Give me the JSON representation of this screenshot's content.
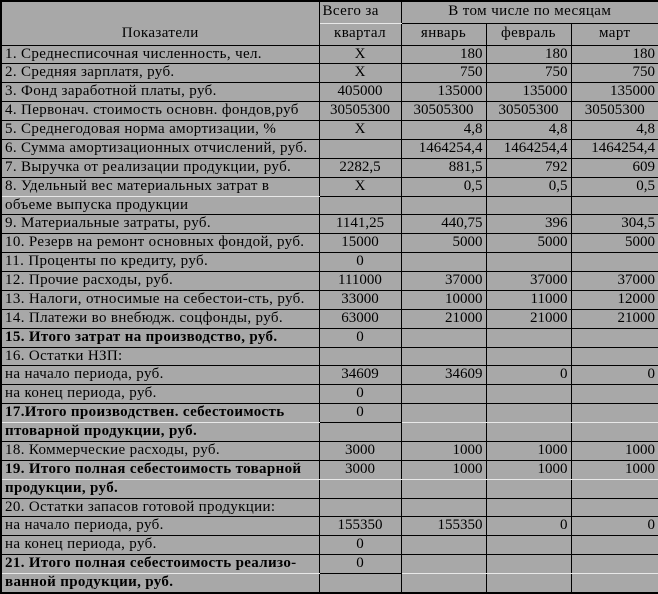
{
  "table": {
    "colors": {
      "background": "#a8a8a8",
      "grid": "#000000",
      "separator_highlight": "#e8e8e8"
    },
    "header": {
      "indicators": "Показатели",
      "total_line1": "Всего за",
      "total_line2": "квартал",
      "months_group": "В том числе по месяцам",
      "months": [
        "январь",
        "февраль",
        "март"
      ]
    },
    "rows": [
      {
        "lines": [
          "1. Среднесписочная численность, чел."
        ],
        "bold": false,
        "total": "Х",
        "months": [
          "180",
          "180",
          "180"
        ]
      },
      {
        "lines": [
          "2. Средняя зарплатя, руб."
        ],
        "bold": false,
        "total": "Х",
        "months": [
          "750",
          "750",
          "750"
        ]
      },
      {
        "lines": [
          "3. Фонд заработной платы, руб."
        ],
        "bold": false,
        "total": "405000",
        "months": [
          "135000",
          "135000",
          "135000"
        ]
      },
      {
        "lines": [
          "4. Первонач. стоимость основн. фондов,руб"
        ],
        "bold": false,
        "total": "30505300",
        "months": [
          "30505300",
          "30505300",
          "30505300"
        ],
        "months_align": "center"
      },
      {
        "lines": [
          "5. Среднегодовая норма амортизации, %"
        ],
        "bold": false,
        "total": "Х",
        "months": [
          "4,8",
          "4,8",
          "4,8"
        ]
      },
      {
        "lines": [
          "6. Сумма амортизационных отчислений, руб."
        ],
        "bold": false,
        "total": "",
        "months": [
          "1464254,4",
          "1464254,4",
          "1464254,4"
        ]
      },
      {
        "lines": [
          "7. Выручка от реализации продукции, руб."
        ],
        "bold": false,
        "total": "2282,5",
        "months": [
          "881,5",
          "792",
          "609"
        ]
      },
      {
        "lines": [
          "8. Удельный вес материальных затрат в",
          "объеме выпуска продукции"
        ],
        "bold": false,
        "total": "Х",
        "months": [
          "0,5",
          "0,5",
          "0,5"
        ],
        "seps": {
          "label": "w"
        }
      },
      {
        "lines": [
          "9. Материальные затраты, руб."
        ],
        "bold": false,
        "total": "1141,25",
        "months": [
          "440,75",
          "396",
          "304,5"
        ]
      },
      {
        "lines": [
          "10. Резерв на ремонт основных фондой, руб."
        ],
        "bold": false,
        "total": "15000",
        "months": [
          "5000",
          "5000",
          "5000"
        ]
      },
      {
        "lines": [
          "11. Проценты по кредиту, руб."
        ],
        "bold": false,
        "total": "0",
        "months": [
          "",
          "",
          ""
        ]
      },
      {
        "lines": [
          "12. Прочие расходы, руб."
        ],
        "bold": false,
        "total": "111000",
        "months": [
          "37000",
          "37000",
          "37000"
        ]
      },
      {
        "lines": [
          "13. Налоги, относимые на себестои-сть, руб."
        ],
        "bold": false,
        "total": "33000",
        "months": [
          "10000",
          "11000",
          "12000"
        ]
      },
      {
        "lines": [
          "14. Платежи во внебюдж. соцфонды, руб."
        ],
        "bold": false,
        "total": "63000",
        "months": [
          "21000",
          "21000",
          "21000"
        ]
      },
      {
        "lines": [
          "15. Итого затрат на производство, руб."
        ],
        "bold": true,
        "total": "0",
        "months": [
          "",
          "",
          ""
        ]
      },
      {
        "lines": [
          "16. Остатки НЗП:"
        ],
        "bold": false,
        "total": "",
        "months": [
          "",
          "",
          ""
        ]
      },
      {
        "lines": [
          "на начало периода, руб."
        ],
        "bold": false,
        "total": "34609",
        "months": [
          "34609",
          "0",
          "0"
        ]
      },
      {
        "lines": [
          "на конец периода, руб."
        ],
        "bold": false,
        "total": "0",
        "months": [
          "",
          "",
          ""
        ]
      },
      {
        "lines": [
          "17.Итого производствен. себестоимость",
          "птоварной продукции, руб."
        ],
        "bold": true,
        "total": "0",
        "months": [
          "",
          "",
          ""
        ],
        "seps": {
          "label": "w",
          "months": "w"
        }
      },
      {
        "lines": [
          "18. Коммерческие расходы, руб."
        ],
        "bold": false,
        "total": "3000",
        "months": [
          "1000",
          "1000",
          "1000"
        ]
      },
      {
        "lines": [
          "19. Итого полная себестоимость товарной",
          "продукции, руб."
        ],
        "bold": true,
        "total": "3000",
        "months": [
          "1000",
          "1000",
          "1000"
        ],
        "seps": {
          "label": "w",
          "total": "w",
          "months": "w"
        }
      },
      {
        "lines": [
          "20. Остатки запасов готовой продукции:"
        ],
        "bold": false,
        "total": "",
        "months": [
          "",
          "",
          ""
        ]
      },
      {
        "lines": [
          "на начало периода, руб."
        ],
        "bold": false,
        "total": "155350",
        "months": [
          "155350",
          "0",
          "0"
        ]
      },
      {
        "lines": [
          "на конец периода, руб."
        ],
        "bold": false,
        "total": "0",
        "months": [
          "",
          "",
          ""
        ]
      },
      {
        "lines": [
          "21. Итого полная себестоимость реализо-",
          "ванной продукции, руб."
        ],
        "bold": true,
        "total": "0",
        "months": [
          "",
          "",
          ""
        ],
        "seps": {
          "label": "w",
          "months": "w"
        }
      }
    ]
  }
}
